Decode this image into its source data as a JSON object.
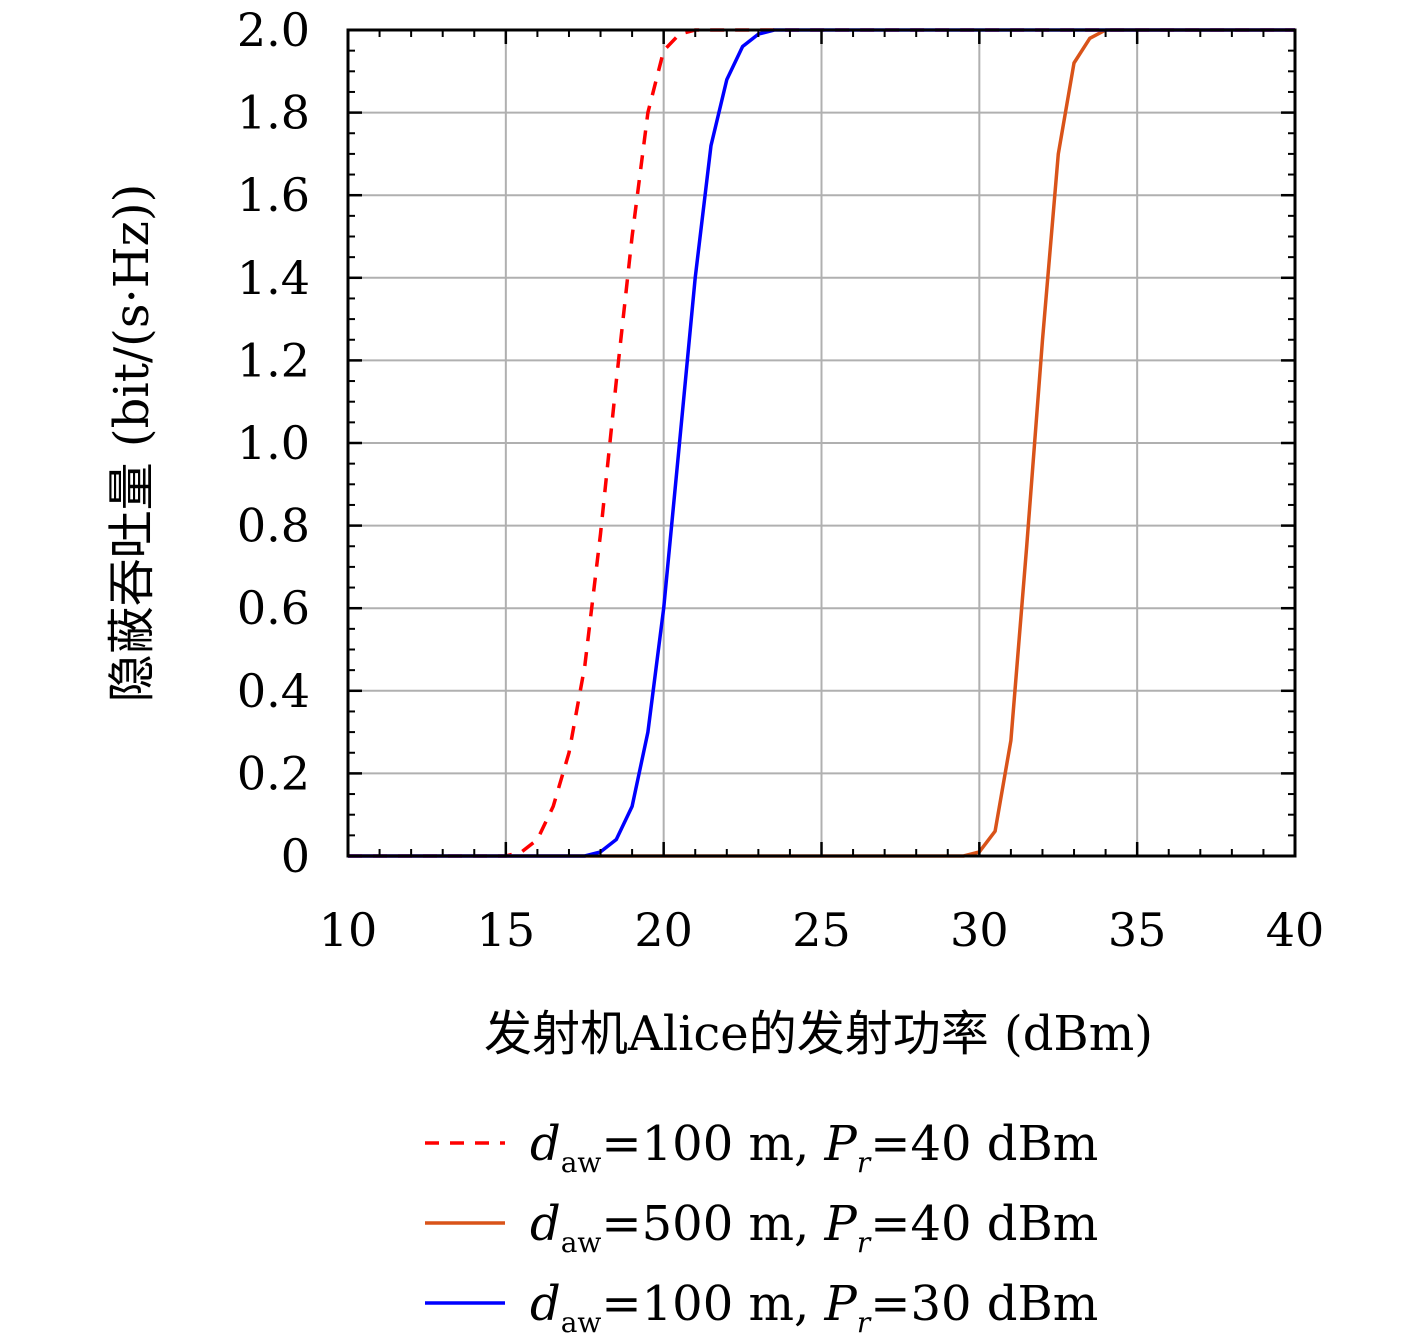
{
  "chart_data": {
    "type": "line",
    "xlabel": "发射机Alice的发射功率 (dBm)",
    "ylabel": "隐蔽吞吐量 (bit/(s·Hz))",
    "xlim": [
      10,
      40
    ],
    "ylim": [
      0,
      2.0
    ],
    "xticks": [
      "10",
      "15",
      "20",
      "25",
      "30",
      "35",
      "40"
    ],
    "yticks": [
      "0",
      "0.2",
      "0.4",
      "0.6",
      "0.8",
      "1.0",
      "1.2",
      "1.4",
      "1.6",
      "1.8",
      "2.0"
    ],
    "grid": true,
    "legend_position": "bottom",
    "series": [
      {
        "name": "d_aw=100 m, P_r=40 dBm",
        "legend": {
          "d": "d",
          "sub": "aw",
          "mid": "=100 m, ",
          "P": "P",
          "psub": "r",
          "tail": "=40 dBm"
        },
        "color": "#ff0000",
        "dash": "dashed",
        "x": [
          10,
          15,
          15.5,
          16,
          16.5,
          17,
          17.5,
          18,
          18.5,
          19,
          19.5,
          20,
          20.5,
          21,
          22,
          23,
          24,
          40
        ],
        "y": [
          0,
          0,
          0.01,
          0.04,
          0.12,
          0.25,
          0.46,
          0.78,
          1.15,
          1.5,
          1.8,
          1.95,
          1.99,
          2.0,
          2.0,
          2.0,
          2.0,
          2.0
        ]
      },
      {
        "name": "d_aw=500 m, P_r=40 dBm",
        "legend": {
          "d": "d",
          "sub": "aw",
          "mid": "=500 m, ",
          "P": "P",
          "psub": "r",
          "tail": "=40 dBm"
        },
        "color": "#d95319",
        "dash": "solid",
        "x": [
          10,
          29.5,
          30,
          30.5,
          31,
          31.5,
          32,
          32.5,
          33,
          33.5,
          34,
          34.5,
          35,
          40
        ],
        "y": [
          0,
          0,
          0.01,
          0.06,
          0.28,
          0.75,
          1.25,
          1.7,
          1.92,
          1.98,
          2.0,
          2.0,
          2.0,
          2.0
        ]
      },
      {
        "name": "d_aw=100 m, P_r=30 dBm",
        "legend": {
          "d": "d",
          "sub": "aw",
          "mid": "=100 m, ",
          "P": "P",
          "psub": "r",
          "tail": "=30 dBm"
        },
        "color": "#0000ff",
        "dash": "solid",
        "x": [
          10,
          17,
          17.5,
          18,
          18.5,
          19,
          19.5,
          20,
          20.5,
          21,
          21.5,
          22,
          22.5,
          23,
          23.5,
          24,
          40
        ],
        "y": [
          0,
          0,
          0.0,
          0.01,
          0.04,
          0.12,
          0.3,
          0.6,
          1.0,
          1.4,
          1.72,
          1.88,
          1.96,
          1.99,
          2.0,
          2.0,
          2.0
        ]
      }
    ]
  }
}
